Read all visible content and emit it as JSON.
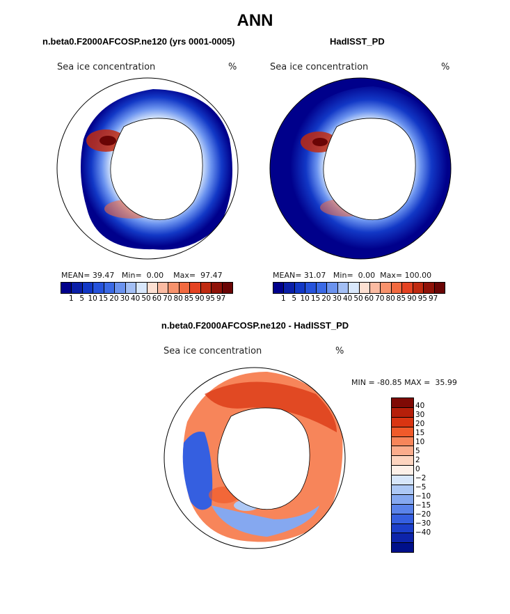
{
  "title": "ANN",
  "panels": [
    {
      "title": "n.beta0.F2000AFCOSP.ne120 (yrs 0001-0005)",
      "field_label": "Sea ice concentration",
      "units": "%",
      "stats": {
        "mean_label": "MEAN=",
        "mean": "39.47",
        "min_label": "Min=",
        "min": "0.00",
        "max_label": "Max=",
        "max": "97.47"
      }
    },
    {
      "title": "HadISST_PD",
      "field_label": "Sea ice concentration",
      "units": "%",
      "stats": {
        "mean_label": "MEAN=",
        "mean": "31.07",
        "min_label": "Min=",
        "min": "0.00",
        "max_label": "Max=",
        "max": "100.00"
      }
    }
  ],
  "colorbar": {
    "labels": [
      "1",
      "5",
      "10",
      "15",
      "20",
      "30",
      "40",
      "50",
      "60",
      "70",
      "80",
      "85",
      "90",
      "95",
      "97"
    ],
    "colors": [
      "#00008b",
      "#0a1fa8",
      "#1238c6",
      "#2653dc",
      "#3b6ae6",
      "#6b93ef",
      "#a3bff5",
      "#d8e7fb",
      "#fde0d2",
      "#fbbba2",
      "#f7926c",
      "#f26a40",
      "#e54322",
      "#c02a10",
      "#8f1208",
      "#6a0505"
    ]
  },
  "difference": {
    "title": "n.beta0.F2000AFCOSP.ne120 - HadISST_PD",
    "field_label": "Sea ice concentration",
    "units": "%",
    "minmax": "MIN = -80.85 MAX =  35.99",
    "colorbar": {
      "labels": [
        "40",
        "30",
        "20",
        "15",
        "10",
        "5",
        "2",
        "0",
        "−2",
        "−5",
        "−10",
        "−15",
        "−20",
        "−30",
        "−40"
      ],
      "colors": [
        "#7f0a05",
        "#b51f0a",
        "#d93512",
        "#f05a2a",
        "#f7855a",
        "#fbac8c",
        "#fdd4bf",
        "#fdf0e8",
        "#d7e6fa",
        "#adc8f5",
        "#85a8f0",
        "#5a83ea",
        "#355fe0",
        "#1c3fca",
        "#0d24aa",
        "#00108a"
      ]
    }
  }
}
